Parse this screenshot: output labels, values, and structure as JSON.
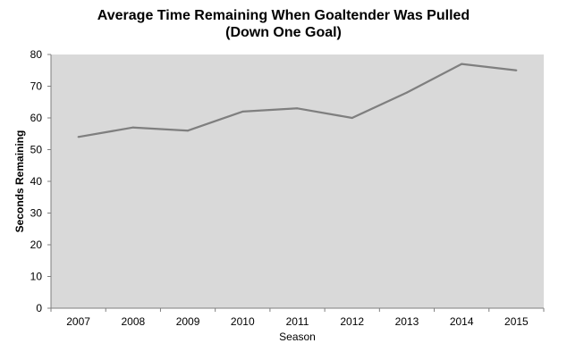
{
  "chart_data": {
    "type": "line",
    "title_line1": "Average Time Remaining When Goaltender Was Pulled",
    "title_line2": "(Down One Goal)",
    "xlabel": "Season",
    "ylabel": "Seconds Remaining",
    "categories": [
      "2007",
      "2008",
      "2009",
      "2010",
      "2011",
      "2012",
      "2013",
      "2014",
      "2015"
    ],
    "series": [
      {
        "values": [
          54,
          57,
          56,
          62,
          63,
          60,
          68,
          77,
          75
        ]
      }
    ],
    "ylim": [
      0,
      80
    ],
    "yticks": [
      0,
      10,
      20,
      30,
      40,
      50,
      60,
      70,
      80
    ],
    "grid": false,
    "legend": "none",
    "colors": {
      "plot_background": "#d9d9d9",
      "line": "#7f7f7f",
      "axis": "#7f7f7f"
    }
  }
}
